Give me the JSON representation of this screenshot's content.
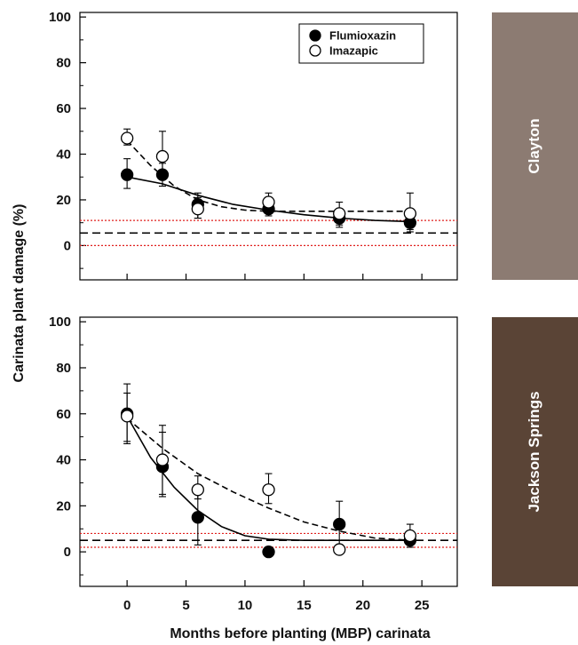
{
  "chart_data": {
    "type": "scatter",
    "ylabel": "Carinata plant damage (%)",
    "xlabel": "Months before planting (MBP) carinata",
    "legend": {
      "placement": "top-right",
      "entries": [
        "Flumioxazin",
        "Imazapic"
      ]
    },
    "x_ticks": [
      "0",
      "5",
      "10",
      "15",
      "20",
      "25"
    ],
    "y_ticks": [
      "0",
      "20",
      "40",
      "60",
      "80",
      "100"
    ],
    "xlim": [
      -4,
      28
    ],
    "ylim": [
      -15,
      102
    ],
    "grid": false,
    "panels": [
      {
        "site": "Clayton",
        "site_color": "#8c7b72",
        "series": [
          {
            "name": "Flumioxazin",
            "marker": "filled",
            "x": [
              0,
              3,
              6,
              12,
              18,
              24
            ],
            "y": [
              31,
              31,
              18,
              16,
              12,
              10
            ],
            "err_low": [
              25,
              26,
              12,
              13,
              8,
              6
            ],
            "err_high": [
              38,
              36,
              23,
              20,
              16,
              13
            ]
          },
          {
            "name": "Imazapic",
            "marker": "open",
            "x": [
              0,
              3,
              6,
              12,
              18,
              24
            ],
            "y": [
              47,
              39,
              16,
              19,
              14,
              14
            ],
            "err_low": [
              44,
              30,
              12,
              14,
              9,
              7
            ],
            "err_high": [
              51,
              50,
              21,
              23,
              19,
              23
            ]
          }
        ],
        "fits": [
          {
            "name": "Flumioxazin",
            "style": "solid",
            "x": [
              0,
              3,
              6,
              9,
              12,
              15,
              18,
              21,
              24
            ],
            "y": [
              30,
              27,
              22,
              18,
              15.5,
              13.5,
              12,
              11,
              10.5
            ]
          },
          {
            "name": "Imazapic",
            "style": "dashed",
            "x": [
              0,
              2,
              4,
              6,
              8,
              10,
              12,
              15,
              18,
              21,
              24
            ],
            "y": [
              46,
              35,
              26,
              20,
              17,
              15.5,
              15,
              15,
              15,
              15,
              15
            ]
          }
        ],
        "reference_lines": [
          {
            "style": "dashed",
            "color": "#000000",
            "y": 5.5
          },
          {
            "style": "dotted",
            "color": "#e0201e",
            "y": 11
          },
          {
            "style": "dotted",
            "color": "#e0201e",
            "y": 0
          }
        ]
      },
      {
        "site": "Jackson Springs",
        "site_color": "#5a4436",
        "series": [
          {
            "name": "Flumioxazin",
            "marker": "filled",
            "x": [
              0,
              3,
              6,
              12,
              18,
              24
            ],
            "y": [
              60,
              37,
              15,
              0,
              12,
              5
            ],
            "err_low": [
              48,
              24,
              3,
              0,
              2,
              3
            ],
            "err_high": [
              73,
              52,
              27,
              0,
              22,
              7
            ]
          },
          {
            "name": "Imazapic",
            "marker": "open",
            "x": [
              0,
              3,
              6,
              12,
              18,
              24
            ],
            "y": [
              59,
              40,
              27,
              27,
              1,
              7
            ],
            "err_low": [
              47,
              25,
              23,
              21,
              1,
              2
            ],
            "err_high": [
              69,
              55,
              33,
              34,
              1,
              12
            ]
          }
        ],
        "fits": [
          {
            "name": "Flumioxazin",
            "style": "solid",
            "x": [
              0,
              2,
              4,
              6,
              8,
              10,
              12,
              15,
              18,
              21,
              24
            ],
            "y": [
              59,
              41,
              28,
              18,
              11,
              7,
              5.5,
              5,
              5,
              5,
              5
            ]
          },
          {
            "name": "Imazapic",
            "style": "dashed",
            "x": [
              0,
              3,
              6,
              9,
              12,
              15,
              18,
              21,
              24
            ],
            "y": [
              58,
              45,
              34,
              26,
              19,
              13,
              9,
              6,
              5
            ]
          }
        ],
        "reference_lines": [
          {
            "style": "dashed",
            "color": "#000000",
            "y": 5
          },
          {
            "style": "dotted",
            "color": "#e0201e",
            "y": 8
          },
          {
            "style": "dotted",
            "color": "#e0201e",
            "y": 2
          }
        ]
      }
    ]
  }
}
